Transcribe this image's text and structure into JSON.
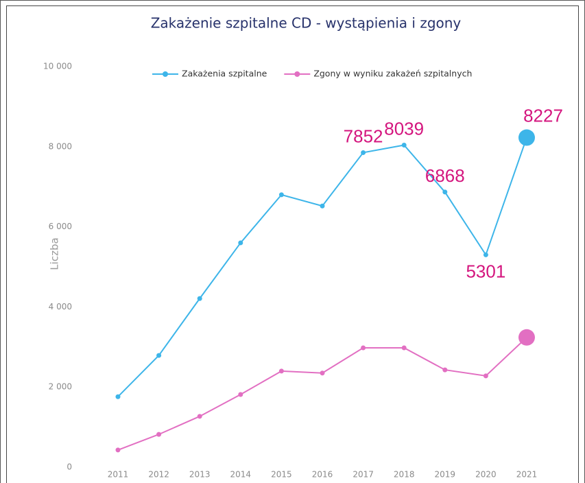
{
  "chart_data": {
    "type": "line",
    "title": "Zakażenie szpitalne CD - wystąpienia i zgony",
    "y_label": "Liczba",
    "categories": [
      "2011",
      "2012",
      "2013",
      "2014",
      "2015",
      "2016",
      "2017",
      "2018",
      "2019",
      "2020",
      "2021"
    ],
    "series": [
      {
        "name": "Zakażenia szpitalne",
        "color": "#3db5e9",
        "values": [
          1760,
          2790,
          4210,
          5600,
          6800,
          6520,
          7852,
          8039,
          6868,
          5301,
          8227
        ],
        "value_labels": [
          null,
          null,
          null,
          null,
          null,
          null,
          "7852",
          "8039",
          "6868",
          "5301",
          "8227"
        ]
      },
      {
        "name": "Zgony w wyniku zakażeń szpitalnych",
        "color": "#e26fc2",
        "values": [
          430,
          820,
          1270,
          1815,
          2400,
          2350,
          2980,
          2980,
          2430,
          2280,
          3240
        ]
      }
    ],
    "ylim": [
      0,
      10000
    ],
    "yticks": [
      0,
      {
        "value": 2000,
        "label": "2 000"
      },
      {
        "value": 4000,
        "label": "4 000"
      },
      {
        "value": 6000,
        "label": "6 000"
      },
      {
        "value": 8000,
        "label": "8 000"
      },
      {
        "value": 10000,
        "label": "10 000"
      }
    ],
    "legend": "top"
  }
}
